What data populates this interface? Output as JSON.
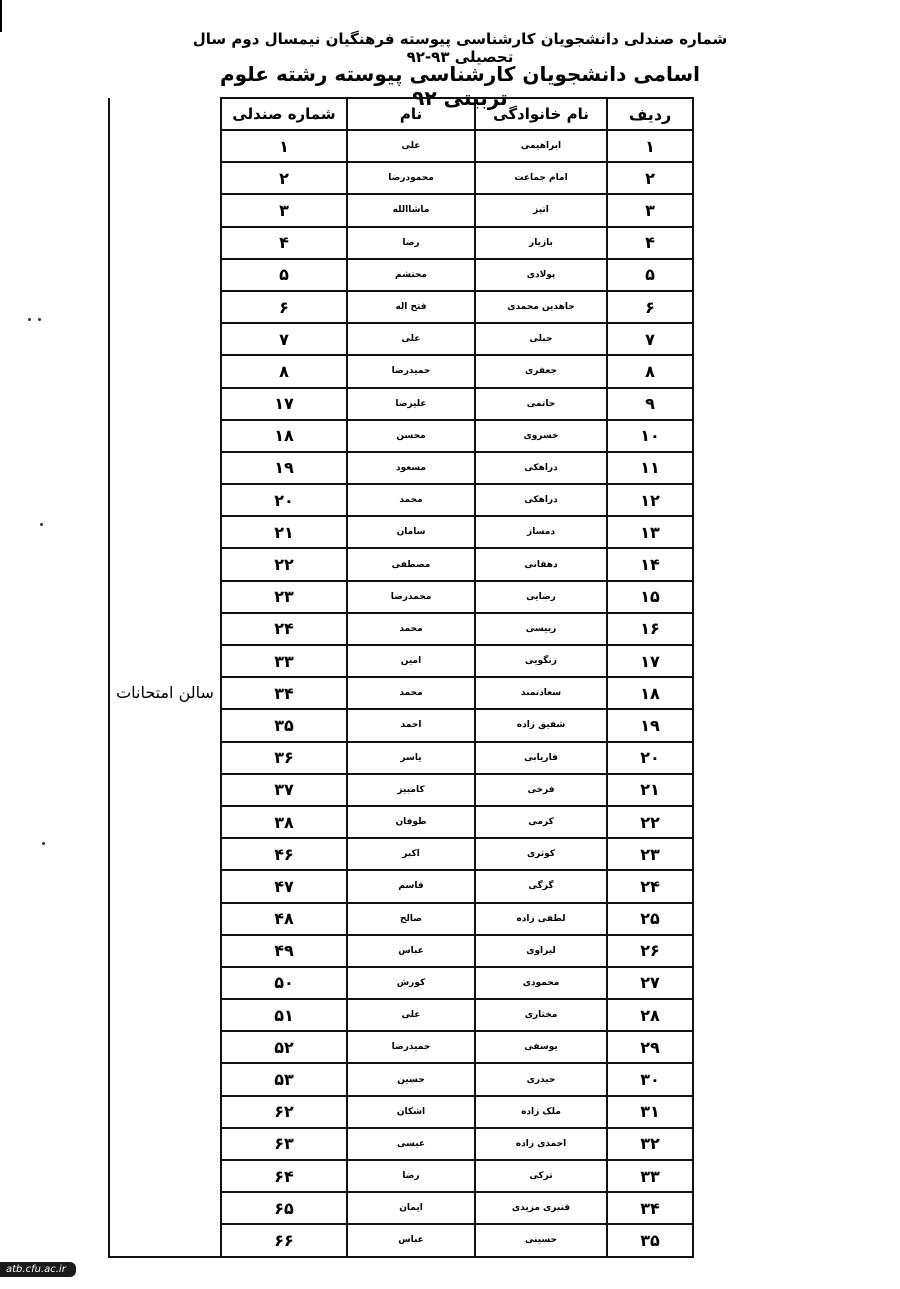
{
  "header": {
    "line1": "شماره صندلی دانشجویان کارشناسی پیوسته فرهنگیان نیمسال دوم سال تحصیلی ۹۳-۹۲",
    "line2": "اسامی دانشجویان کارشناسی پیوسته رشته علوم تربیتی ۹۲"
  },
  "table": {
    "columns": [
      "ردیف",
      "نام خانوادگی",
      "نام",
      "شماره صندلی"
    ],
    "location": "سالن امتحانات",
    "rows": [
      [
        "۱",
        "ابراهیمی",
        "علی",
        "۱"
      ],
      [
        "۲",
        "امام جماعت",
        "محمودرضا",
        "۲"
      ],
      [
        "۳",
        "اتیز",
        "ماشاالله",
        "۳"
      ],
      [
        "۴",
        "بازیار",
        "رضا",
        "۴"
      ],
      [
        "۵",
        "پولادی",
        "محتشم",
        "۵"
      ],
      [
        "۶",
        "جاهدین محمدی",
        "فتح اله",
        "۶"
      ],
      [
        "۷",
        "جبلی",
        "علی",
        "۷"
      ],
      [
        "۸",
        "جعفری",
        "حمیدرضا",
        "۸"
      ],
      [
        "۹",
        "حاتمی",
        "علیرضا",
        "۱۷"
      ],
      [
        "۱۰",
        "خسروی",
        "محسن",
        "۱۸"
      ],
      [
        "۱۱",
        "دراهکی",
        "مسعود",
        "۱۹"
      ],
      [
        "۱۲",
        "دراهکی",
        "محمد",
        "۲۰"
      ],
      [
        "۱۳",
        "دمساز",
        "سامان",
        "۲۱"
      ],
      [
        "۱۴",
        "دهقانی",
        "مصطفی",
        "۲۲"
      ],
      [
        "۱۵",
        "رضایی",
        "محمدرضا",
        "۲۳"
      ],
      [
        "۱۶",
        "رییسی",
        "محمد",
        "۲۴"
      ],
      [
        "۱۷",
        "زنگویی",
        "امین",
        "۳۳"
      ],
      [
        "۱۸",
        "سعادتمند",
        "محمد",
        "۳۴"
      ],
      [
        "۱۹",
        "شفیق زاده",
        "احمد",
        "۳۵"
      ],
      [
        "۲۰",
        "فاریابی",
        "یاسر",
        "۳۶"
      ],
      [
        "۲۱",
        "فرخی",
        "کامبیز",
        "۳۷"
      ],
      [
        "۲۲",
        "کرمی",
        "طوفان",
        "۳۸"
      ],
      [
        "۲۳",
        "کوثری",
        "اکبر",
        "۴۶"
      ],
      [
        "۲۴",
        "گرگی",
        "قاسم",
        "۴۷"
      ],
      [
        "۲۵",
        "لطفی زاده",
        "صالح",
        "۴۸"
      ],
      [
        "۲۶",
        "لیراوی",
        "عباس",
        "۴۹"
      ],
      [
        "۲۷",
        "محمودی",
        "کورش",
        "۵۰"
      ],
      [
        "۲۸",
        "مختاری",
        "علی",
        "۵۱"
      ],
      [
        "۲۹",
        "یوسفی",
        "حمیدرضا",
        "۵۲"
      ],
      [
        "۳۰",
        "حیدری",
        "حسین",
        "۵۳"
      ],
      [
        "۳۱",
        "ملک زاده",
        "اشکان",
        "۶۲"
      ],
      [
        "۳۲",
        "احمدی زاده",
        "عیسی",
        "۶۳"
      ],
      [
        "۳۳",
        "ترکی",
        "رضا",
        "۶۴"
      ],
      [
        "۳۴",
        "قنبری مزیدی",
        "ایمان",
        "۶۵"
      ],
      [
        "۳۵",
        "حسینی",
        "عباس",
        "۶۶"
      ]
    ]
  },
  "watermark": "atb.cfu.ac.ir"
}
